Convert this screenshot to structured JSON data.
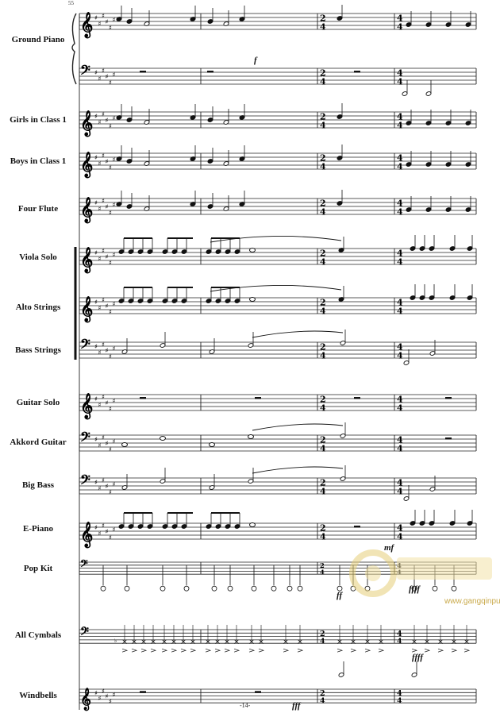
{
  "measure_number": "55",
  "page_number": "-14-",
  "time_signatures": [
    "2/4",
    "4/4"
  ],
  "instruments": [
    {
      "name": "Ground Piano",
      "clef": "treble+bass",
      "key": "6 sharps"
    },
    {
      "name": "Girls in Class 1",
      "clef": "treble",
      "key": "6 sharps"
    },
    {
      "name": "Boys in Class 1",
      "clef": "treble",
      "key": "6 sharps"
    },
    {
      "name": "Four Flute",
      "clef": "treble",
      "key": "6 sharps"
    },
    {
      "name": "Viola Solo",
      "clef": "treble",
      "key": "6 sharps"
    },
    {
      "name": "Alto Strings",
      "clef": "treble",
      "key": "6 sharps"
    },
    {
      "name": "Bass Strings",
      "clef": "bass",
      "key": "6 sharps"
    },
    {
      "name": "Guitar Solo",
      "clef": "treble",
      "key": "6 sharps"
    },
    {
      "name": "Akkord Guitar",
      "clef": "bass",
      "key": "6 sharps"
    },
    {
      "name": "Big Bass",
      "clef": "bass",
      "key": "6 sharps"
    },
    {
      "name": "E-Piano",
      "clef": "treble",
      "key": "6 sharps"
    },
    {
      "name": "Pop Kit",
      "clef": "bass",
      "key": "none"
    },
    {
      "name": "All Cymbals",
      "clef": "bass",
      "key": "none"
    },
    {
      "name": "Windbells",
      "clef": "treble",
      "key": "6 sharps"
    }
  ],
  "dynamics": {
    "piano_f": "f",
    "epiano_mf": "mf",
    "popkit_ff": "ff",
    "popkit_ffff": "ffff",
    "cymbals_ffff": "ffff",
    "windbells_fff": "fff"
  },
  "watermark": {
    "site": "www.gangqinpu.com",
    "color": "#c9a94a"
  }
}
